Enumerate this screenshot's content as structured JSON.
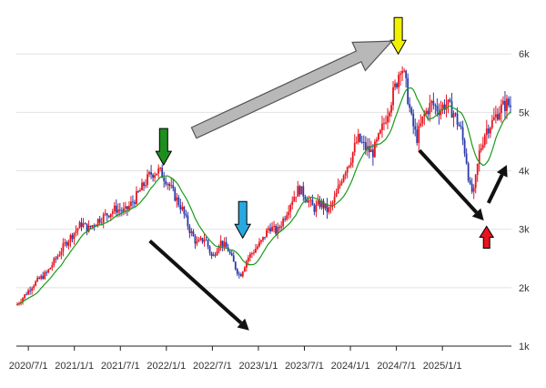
{
  "chart_data": {
    "type": "line",
    "subtype": "candlestick-with-moving-average",
    "title": "",
    "xlabel": "",
    "ylabel": "",
    "ylim": [
      1000,
      6300
    ],
    "xlim": [
      2020.37,
      2025.75
    ],
    "grid": true,
    "y_ticks": [
      {
        "value": 1000,
        "label": "1k"
      },
      {
        "value": 2000,
        "label": "2k"
      },
      {
        "value": 3000,
        "label": "3k"
      },
      {
        "value": 4000,
        "label": "4k"
      },
      {
        "value": 5000,
        "label": "5k"
      },
      {
        "value": 6000,
        "label": "6k"
      }
    ],
    "x_ticks": [
      {
        "value": 2020.5,
        "label": "2020/7/1"
      },
      {
        "value": 2021.0,
        "label": "2021/1/1"
      },
      {
        "value": 2021.5,
        "label": "2021/7/1"
      },
      {
        "value": 2022.0,
        "label": "2022/1/1"
      },
      {
        "value": 2022.5,
        "label": "2022/7/1"
      },
      {
        "value": 2023.0,
        "label": "2023/1/1"
      },
      {
        "value": 2023.5,
        "label": "2023/7/1"
      },
      {
        "value": 2024.0,
        "label": "2024/1/1"
      },
      {
        "value": 2024.5,
        "label": "2024/7/1"
      },
      {
        "value": 2025.0,
        "label": "2025/1/1"
      }
    ],
    "price_path": [
      [
        2020.37,
        1700
      ],
      [
        2020.45,
        1850
      ],
      [
        2020.55,
        2050
      ],
      [
        2020.62,
        2150
      ],
      [
        2020.7,
        2250
      ],
      [
        2020.8,
        2500
      ],
      [
        2020.9,
        2750
      ],
      [
        2021.0,
        2950
      ],
      [
        2021.08,
        3100
      ],
      [
        2021.15,
        3000
      ],
      [
        2021.25,
        3150
      ],
      [
        2021.35,
        3250
      ],
      [
        2021.45,
        3350
      ],
      [
        2021.55,
        3300
      ],
      [
        2021.65,
        3500
      ],
      [
        2021.75,
        3750
      ],
      [
        2021.83,
        3950
      ],
      [
        2021.92,
        4000
      ],
      [
        2022.0,
        3850
      ],
      [
        2022.08,
        3600
      ],
      [
        2022.17,
        3350
      ],
      [
        2022.25,
        3000
      ],
      [
        2022.33,
        2750
      ],
      [
        2022.42,
        2850
      ],
      [
        2022.5,
        2500
      ],
      [
        2022.58,
        2800
      ],
      [
        2022.67,
        2650
      ],
      [
        2022.75,
        2350
      ],
      [
        2022.8,
        2200
      ],
      [
        2022.88,
        2500
      ],
      [
        2022.96,
        2650
      ],
      [
        2023.04,
        2800
      ],
      [
        2023.12,
        3050
      ],
      [
        2023.2,
        2950
      ],
      [
        2023.28,
        3200
      ],
      [
        2023.36,
        3500
      ],
      [
        2023.44,
        3700
      ],
      [
        2023.52,
        3550
      ],
      [
        2023.6,
        3350
      ],
      [
        2023.68,
        3450
      ],
      [
        2023.76,
        3300
      ],
      [
        2023.84,
        3550
      ],
      [
        2023.92,
        3950
      ],
      [
        2024.0,
        4200
      ],
      [
        2024.08,
        4550
      ],
      [
        2024.16,
        4400
      ],
      [
        2024.24,
        4300
      ],
      [
        2024.32,
        4600
      ],
      [
        2024.42,
        5100
      ],
      [
        2024.5,
        5500
      ],
      [
        2024.55,
        5850
      ],
      [
        2024.6,
        5500
      ],
      [
        2024.66,
        4900
      ],
      [
        2024.72,
        4550
      ],
      [
        2024.8,
        4950
      ],
      [
        2024.88,
        5150
      ],
      [
        2024.96,
        5050
      ],
      [
        2025.04,
        5150
      ],
      [
        2025.12,
        5000
      ],
      [
        2025.2,
        4700
      ],
      [
        2025.26,
        4200
      ],
      [
        2025.3,
        3700
      ],
      [
        2025.34,
        3600
      ],
      [
        2025.4,
        4300
      ],
      [
        2025.47,
        4700
      ],
      [
        2025.55,
        4850
      ],
      [
        2025.62,
        5050
      ],
      [
        2025.7,
        5150
      ],
      [
        2025.75,
        5100
      ]
    ],
    "series": [
      {
        "name": "price",
        "style": "candles",
        "up_color": "#e8141e",
        "down_color": "#2b3aa8"
      },
      {
        "name": "moving-average",
        "style": "line",
        "color": "#1a9a1a"
      }
    ],
    "annotations": [
      {
        "type": "down-arrow",
        "color": "#1e8f1e",
        "at": [
          2021.97,
          4100
        ]
      },
      {
        "type": "down-arrow",
        "color": "#29a8e0",
        "at": [
          2022.83,
          2850
        ]
      },
      {
        "type": "down-arrow",
        "color": "#f2f200",
        "at": [
          2024.52,
          6000
        ]
      },
      {
        "type": "up-arrow",
        "color": "#e8141e",
        "at": [
          2025.48,
          3050
        ]
      },
      {
        "type": "trend-arrow",
        "color": "#b8b8b8",
        "from": [
          2022.3,
          4650
        ],
        "to": [
          2024.45,
          6220
        ]
      },
      {
        "type": "trend-arrow",
        "color": "#111111",
        "from": [
          2021.82,
          2800
        ],
        "to": [
          2022.9,
          1270
        ]
      },
      {
        "type": "trend-arrow",
        "color": "#111111",
        "from": [
          2024.75,
          4350
        ],
        "to": [
          2025.45,
          3150
        ]
      },
      {
        "type": "trend-arrow",
        "color": "#111111",
        "from": [
          2025.5,
          3450
        ],
        "to": [
          2025.7,
          4100
        ]
      }
    ]
  }
}
